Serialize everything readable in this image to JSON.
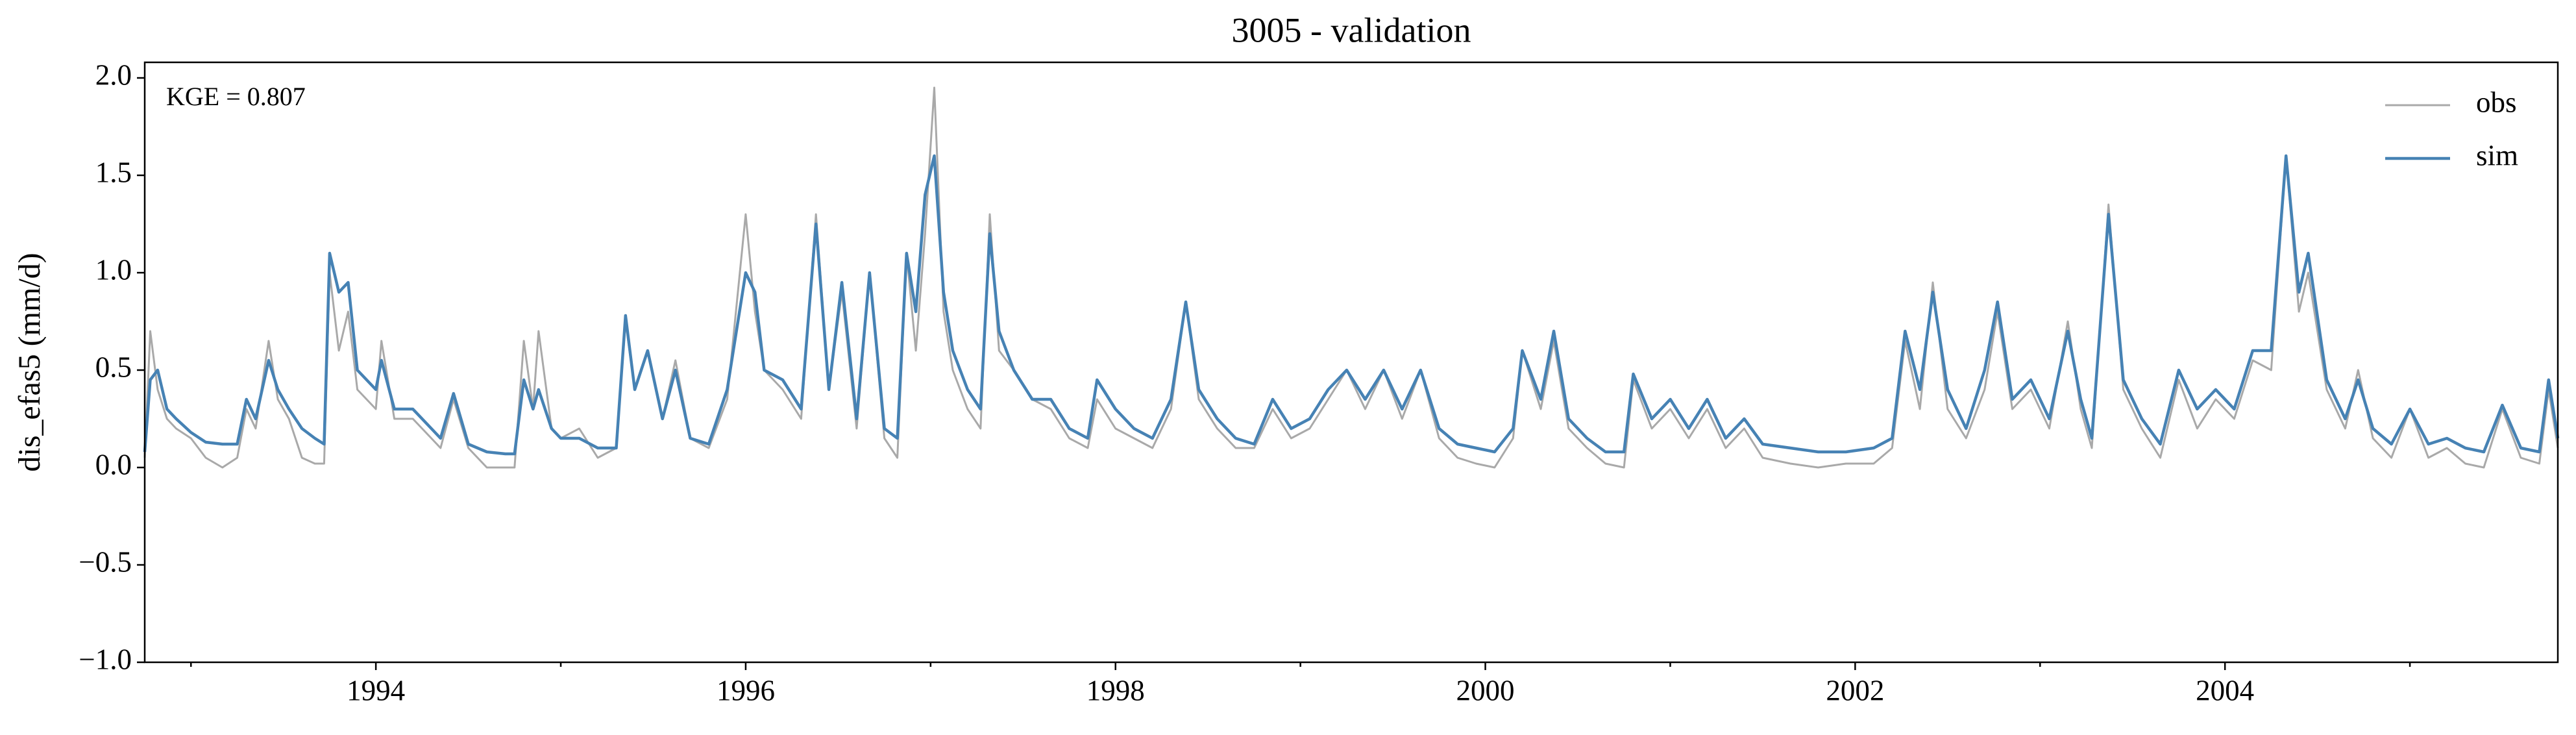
{
  "chart_data": {
    "type": "line",
    "title": "3005 - validation",
    "ylabel": "dis_efas5 (mm/d)",
    "annotation": "KGE = 0.807",
    "legend": "upper right",
    "x": [
      1992.75,
      1992.78,
      1992.82,
      1992.87,
      1992.92,
      1993.0,
      1993.08,
      1993.17,
      1993.25,
      1993.3,
      1993.35,
      1993.42,
      1993.47,
      1993.53,
      1993.6,
      1993.67,
      1993.72,
      1993.75,
      1993.8,
      1993.85,
      1993.9,
      1994.0,
      1994.03,
      1994.1,
      1994.2,
      1994.3,
      1994.35,
      1994.42,
      1994.5,
      1994.6,
      1994.7,
      1994.75,
      1994.8,
      1994.85,
      1994.88,
      1994.95,
      1995.0,
      1995.1,
      1995.2,
      1995.3,
      1995.35,
      1995.4,
      1995.47,
      1995.55,
      1995.62,
      1995.7,
      1995.8,
      1995.9,
      1996.0,
      1996.05,
      1996.1,
      1996.2,
      1996.3,
      1996.38,
      1996.45,
      1996.52,
      1996.6,
      1996.67,
      1996.75,
      1996.82,
      1996.87,
      1996.92,
      1996.97,
      1997.02,
      1997.07,
      1997.12,
      1997.2,
      1997.27,
      1997.32,
      1997.37,
      1997.45,
      1997.55,
      1997.65,
      1997.75,
      1997.85,
      1997.9,
      1998.0,
      1998.1,
      1998.2,
      1998.3,
      1998.38,
      1998.45,
      1998.55,
      1998.65,
      1998.75,
      1998.85,
      1998.95,
      1999.05,
      1999.15,
      1999.25,
      1999.35,
      1999.45,
      1999.55,
      1999.65,
      1999.75,
      1999.85,
      1999.95,
      2000.05,
      2000.15,
      2000.2,
      2000.3,
      2000.37,
      2000.45,
      2000.55,
      2000.65,
      2000.75,
      2000.8,
      2000.9,
      2001.0,
      2001.1,
      2001.2,
      2001.3,
      2001.4,
      2001.5,
      2001.65,
      2001.8,
      2001.95,
      2002.1,
      2002.2,
      2002.27,
      2002.35,
      2002.42,
      2002.5,
      2002.6,
      2002.7,
      2002.77,
      2002.85,
      2002.95,
      2003.05,
      2003.15,
      2003.22,
      2003.28,
      2003.37,
      2003.45,
      2003.55,
      2003.65,
      2003.75,
      2003.85,
      2003.95,
      2004.05,
      2004.15,
      2004.25,
      2004.33,
      2004.4,
      2004.45,
      2004.55,
      2004.65,
      2004.72,
      2004.8,
      2004.9,
      2005.0,
      2005.1,
      2005.2,
      2005.3,
      2005.4,
      2005.5,
      2005.6,
      2005.7,
      2005.75,
      2005.8
    ],
    "series": [
      {
        "name": "obs",
        "color": "#a9a9a9",
        "values": [
          0.05,
          0.7,
          0.4,
          0.25,
          0.2,
          0.15,
          0.05,
          0.0,
          0.05,
          0.3,
          0.2,
          0.65,
          0.35,
          0.25,
          0.05,
          0.02,
          0.02,
          1.0,
          0.6,
          0.8,
          0.4,
          0.3,
          0.65,
          0.25,
          0.25,
          0.15,
          0.1,
          0.35,
          0.1,
          0.0,
          0.0,
          0.0,
          0.65,
          0.3,
          0.7,
          0.2,
          0.15,
          0.2,
          0.05,
          0.1,
          0.75,
          0.4,
          0.6,
          0.25,
          0.55,
          0.15,
          0.1,
          0.35,
          1.3,
          0.8,
          0.5,
          0.4,
          0.25,
          1.3,
          0.4,
          0.9,
          0.2,
          1.0,
          0.15,
          0.05,
          1.1,
          0.6,
          1.2,
          1.95,
          0.8,
          0.5,
          0.3,
          0.2,
          1.3,
          0.6,
          0.5,
          0.35,
          0.3,
          0.15,
          0.1,
          0.35,
          0.2,
          0.15,
          0.1,
          0.3,
          0.85,
          0.35,
          0.2,
          0.1,
          0.1,
          0.3,
          0.15,
          0.2,
          0.35,
          0.5,
          0.3,
          0.5,
          0.25,
          0.5,
          0.15,
          0.05,
          0.02,
          0.0,
          0.15,
          0.6,
          0.3,
          0.65,
          0.2,
          0.1,
          0.02,
          0.0,
          0.45,
          0.2,
          0.3,
          0.15,
          0.3,
          0.1,
          0.2,
          0.05,
          0.02,
          0.0,
          0.02,
          0.02,
          0.1,
          0.65,
          0.3,
          0.95,
          0.3,
          0.15,
          0.4,
          0.8,
          0.3,
          0.4,
          0.2,
          0.75,
          0.3,
          0.1,
          1.35,
          0.4,
          0.2,
          0.05,
          0.45,
          0.2,
          0.35,
          0.25,
          0.55,
          0.5,
          1.6,
          0.8,
          1.0,
          0.4,
          0.2,
          0.5,
          0.15,
          0.05,
          0.3,
          0.05,
          0.1,
          0.02,
          0.0,
          0.3,
          0.05,
          0.02,
          0.4,
          0.1
        ]
      },
      {
        "name": "sim",
        "color": "#4682b4",
        "values": [
          0.08,
          0.45,
          0.5,
          0.3,
          0.25,
          0.18,
          0.13,
          0.12,
          0.12,
          0.35,
          0.25,
          0.55,
          0.4,
          0.3,
          0.2,
          0.15,
          0.12,
          1.1,
          0.9,
          0.95,
          0.5,
          0.4,
          0.55,
          0.3,
          0.3,
          0.2,
          0.15,
          0.38,
          0.12,
          0.08,
          0.07,
          0.07,
          0.45,
          0.3,
          0.4,
          0.2,
          0.15,
          0.15,
          0.1,
          0.1,
          0.78,
          0.4,
          0.6,
          0.25,
          0.5,
          0.15,
          0.12,
          0.4,
          1.0,
          0.9,
          0.5,
          0.45,
          0.3,
          1.25,
          0.4,
          0.95,
          0.25,
          1.0,
          0.2,
          0.15,
          1.1,
          0.8,
          1.4,
          1.6,
          0.9,
          0.6,
          0.4,
          0.3,
          1.2,
          0.7,
          0.5,
          0.35,
          0.35,
          0.2,
          0.15,
          0.45,
          0.3,
          0.2,
          0.15,
          0.35,
          0.85,
          0.4,
          0.25,
          0.15,
          0.12,
          0.35,
          0.2,
          0.25,
          0.4,
          0.5,
          0.35,
          0.5,
          0.3,
          0.5,
          0.2,
          0.12,
          0.1,
          0.08,
          0.2,
          0.6,
          0.35,
          0.7,
          0.25,
          0.15,
          0.08,
          0.08,
          0.48,
          0.25,
          0.35,
          0.2,
          0.35,
          0.15,
          0.25,
          0.12,
          0.1,
          0.08,
          0.08,
          0.1,
          0.15,
          0.7,
          0.4,
          0.9,
          0.4,
          0.2,
          0.5,
          0.85,
          0.35,
          0.45,
          0.25,
          0.7,
          0.35,
          0.15,
          1.3,
          0.45,
          0.25,
          0.12,
          0.5,
          0.3,
          0.4,
          0.3,
          0.6,
          0.6,
          1.6,
          0.9,
          1.1,
          0.45,
          0.25,
          0.45,
          0.2,
          0.12,
          0.3,
          0.12,
          0.15,
          0.1,
          0.08,
          0.32,
          0.1,
          0.08,
          0.45,
          0.15
        ]
      }
    ],
    "xlim": [
      1992.75,
      2005.8
    ],
    "xticks": [
      1994,
      1996,
      1998,
      2000,
      2002,
      2004
    ],
    "xminorticks": [
      1993,
      1995,
      1997,
      1999,
      2001,
      2003,
      2005
    ],
    "ylim": [
      -1,
      2.08
    ],
    "yticks": [
      {
        "value": -1,
        "label": "−1.0"
      },
      {
        "value": -0.5,
        "label": "−0.5"
      },
      {
        "value": 0,
        "label": "0.0"
      },
      {
        "value": 0.5,
        "label": "0.5"
      },
      {
        "value": 1,
        "label": "1.0"
      },
      {
        "value": 1.5,
        "label": "1.5"
      },
      {
        "value": 2,
        "label": "2.0"
      }
    ]
  }
}
